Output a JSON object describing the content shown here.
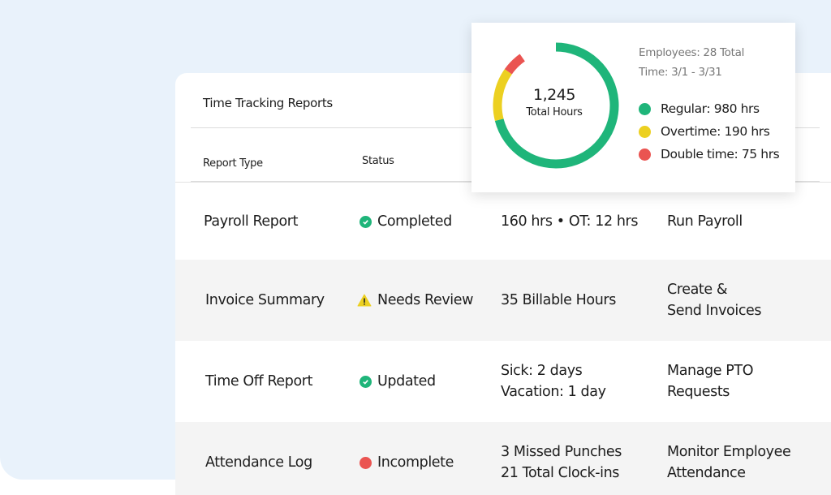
{
  "card": {
    "title": "Time Tracking Reports",
    "columns": [
      "Report Type",
      "Status"
    ],
    "rows": [
      {
        "type": "Payroll Report",
        "status": "Completed",
        "status_icon": "check-circle-icon",
        "detail": [
          "160 hrs • OT: 12 hrs"
        ],
        "action": [
          "Run Payroll"
        ]
      },
      {
        "type": "Invoice Summary",
        "status": "Needs Review",
        "status_icon": "warning-triangle-icon",
        "detail": [
          "35 Billable Hours"
        ],
        "action": [
          "Create &",
          "Send Invoices"
        ]
      },
      {
        "type": "Time Off Report",
        "status": "Updated",
        "status_icon": "check-circle-icon",
        "detail": [
          "Sick: 2 days",
          "Vacation: 1 day"
        ],
        "action": [
          "Manage PTO",
          "Requests"
        ]
      },
      {
        "type": "Attendance Log",
        "status": "Incomplete",
        "status_icon": "red-dot-icon",
        "detail": [
          "3 Missed Punches",
          "21 Total Clock-ins"
        ],
        "action": [
          "Monitor Employee",
          "Attendance"
        ]
      }
    ]
  },
  "summary": {
    "employees": "Employees: 28 Total",
    "time": "Time: 3/1 - 3/31",
    "total_value": "1,245",
    "total_label": "Total Hours",
    "legend": [
      "Regular: 980 hrs",
      "Overtime: 190 hrs",
      "Double time: 75 hrs"
    ]
  },
  "chart_data": {
    "type": "pie",
    "categories": [
      "Regular",
      "Overtime",
      "Double time"
    ],
    "values": [
      980,
      190,
      75
    ],
    "colors": [
      "#1fb57a",
      "#ecd021",
      "#ea5451"
    ]
  },
  "colors": {
    "green": "#1fb57a",
    "yellow": "#ecd021",
    "red": "#ea5451",
    "background": "#e9f2fb"
  }
}
